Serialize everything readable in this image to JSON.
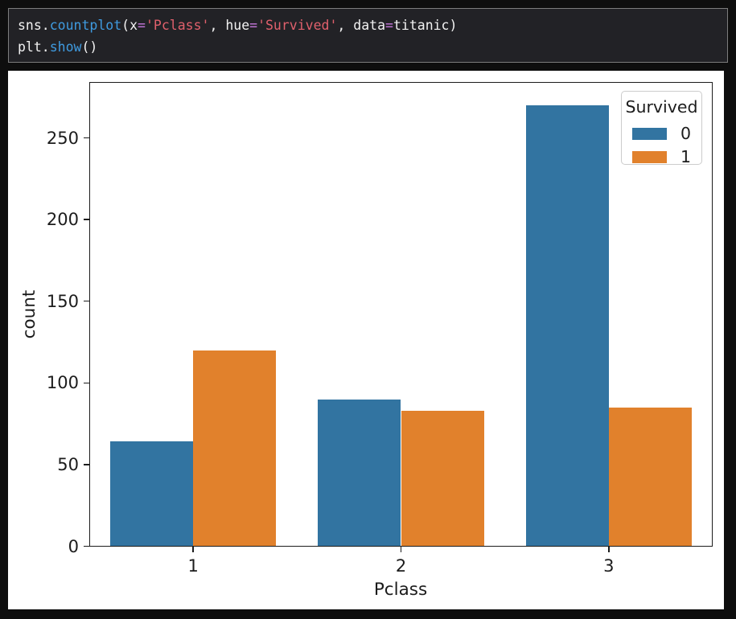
{
  "colors": {
    "code-plain": "#f2f2f2",
    "code-func": "#3f9be0",
    "code-str": "#e0606c",
    "code-op": "#c678dd",
    "bar-blue": "#3274a1",
    "bar-orange": "#e1812c"
  },
  "code_cell": {
    "lines": [
      [
        {
          "t": "sns.",
          "c": "plain"
        },
        {
          "t": "countplot",
          "c": "func"
        },
        {
          "t": "(x",
          "c": "plain"
        },
        {
          "t": "=",
          "c": "op"
        },
        {
          "t": "'Pclass'",
          "c": "str"
        },
        {
          "t": ", hue",
          "c": "plain"
        },
        {
          "t": "=",
          "c": "op"
        },
        {
          "t": "'Survived'",
          "c": "str"
        },
        {
          "t": ", data",
          "c": "plain"
        },
        {
          "t": "=",
          "c": "op"
        },
        {
          "t": "titanic)",
          "c": "plain"
        }
      ],
      [
        {
          "t": "plt.",
          "c": "plain"
        },
        {
          "t": "show",
          "c": "func"
        },
        {
          "t": "()",
          "c": "plain"
        }
      ]
    ]
  },
  "chart_data": {
    "type": "bar",
    "title": "",
    "xlabel": "Pclass",
    "ylabel": "count",
    "categories": [
      "1",
      "2",
      "3"
    ],
    "series": [
      {
        "name": "0",
        "color": "#3274a1",
        "values": [
          64,
          90,
          270
        ]
      },
      {
        "name": "1",
        "color": "#e1812c",
        "values": [
          120,
          83,
          85
        ]
      }
    ],
    "legend": {
      "title": "Survived",
      "position": "upper right"
    },
    "ylim": [
      0,
      284
    ],
    "yticks": [
      0,
      50,
      100,
      150,
      200,
      250
    ],
    "grid": false
  }
}
